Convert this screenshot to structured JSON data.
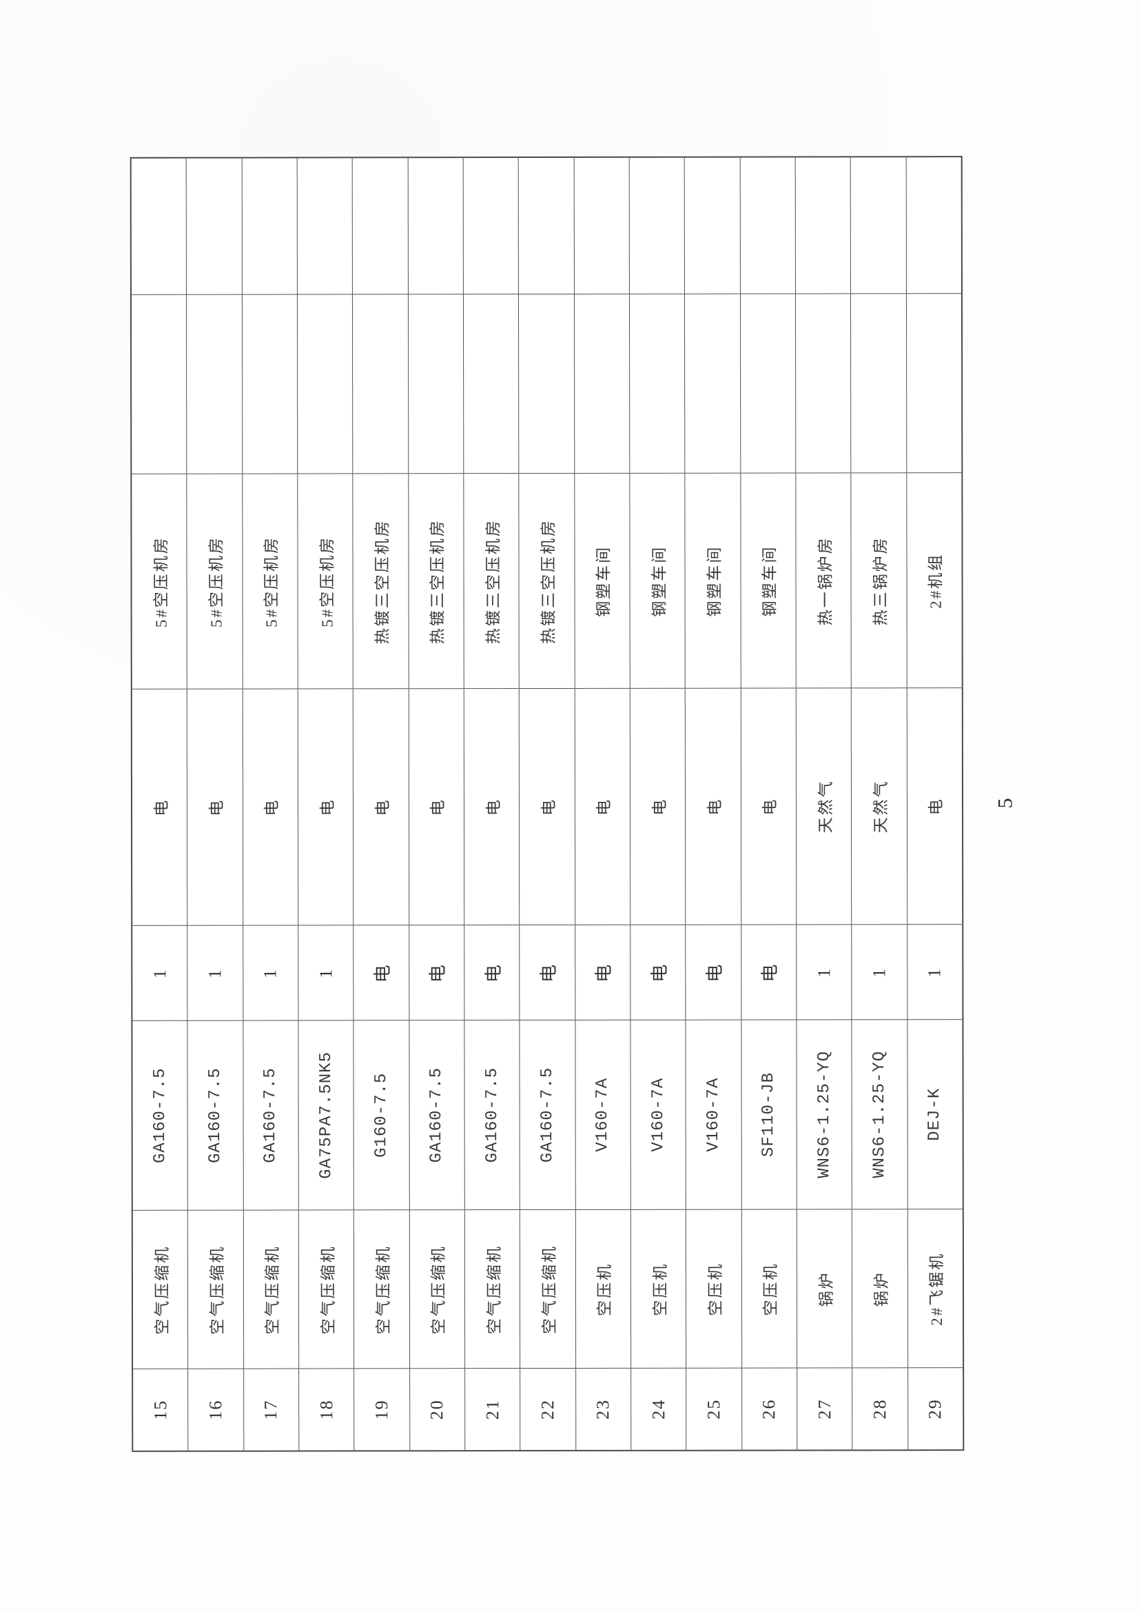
{
  "page": {
    "number": "5"
  },
  "table": {
    "rows": [
      {
        "no": "15",
        "name": "空气压缩机",
        "model": "GA160-7.5",
        "qty": "1",
        "energy": "电",
        "location": "5#空压机房",
        "blank_mid": "",
        "blank_tall": ""
      },
      {
        "no": "16",
        "name": "空气压缩机",
        "model": "GA160-7.5",
        "qty": "1",
        "energy": "电",
        "location": "5#空压机房",
        "blank_mid": "",
        "blank_tall": ""
      },
      {
        "no": "17",
        "name": "空气压缩机",
        "model": "GA160-7.5",
        "qty": "1",
        "energy": "电",
        "location": "5#空压机房",
        "blank_mid": "",
        "blank_tall": ""
      },
      {
        "no": "18",
        "name": "空气压缩机",
        "model": "GA75PA7.5NK5",
        "qty": "1",
        "energy": "电",
        "location": "5#空压机房",
        "blank_mid": "",
        "blank_tall": ""
      },
      {
        "no": "19",
        "name": "空气压缩机",
        "model": "G160-7.5",
        "qty": "电",
        "energy": "电",
        "location": "热镀三空压机房",
        "blank_mid": "",
        "blank_tall": ""
      },
      {
        "no": "20",
        "name": "空气压缩机",
        "model": "GA160-7.5",
        "qty": "电",
        "energy": "电",
        "location": "热镀三空压机房",
        "blank_mid": "",
        "blank_tall": ""
      },
      {
        "no": "21",
        "name": "空气压缩机",
        "model": "GA160-7.5",
        "qty": "电",
        "energy": "电",
        "location": "热镀三空压机房",
        "blank_mid": "",
        "blank_tall": ""
      },
      {
        "no": "22",
        "name": "空气压缩机",
        "model": "GA160-7.5",
        "qty": "电",
        "energy": "电",
        "location": "热镀三空压机房",
        "blank_mid": "",
        "blank_tall": ""
      },
      {
        "no": "23",
        "name": "空压机",
        "model": "V160-7A",
        "qty": "电",
        "energy": "电",
        "location": "钢塑车间",
        "blank_mid": "",
        "blank_tall": ""
      },
      {
        "no": "24",
        "name": "空压机",
        "model": "V160-7A",
        "qty": "电",
        "energy": "电",
        "location": "钢塑车间",
        "blank_mid": "",
        "blank_tall": ""
      },
      {
        "no": "25",
        "name": "空压机",
        "model": "V160-7A",
        "qty": "电",
        "energy": "电",
        "location": "钢塑车间",
        "blank_mid": "",
        "blank_tall": ""
      },
      {
        "no": "26",
        "name": "空压机",
        "model": "SF110-JB",
        "qty": "电",
        "energy": "电",
        "location": "钢塑车间",
        "blank_mid": "",
        "blank_tall": ""
      },
      {
        "no": "27",
        "name": "锅炉",
        "model": "WNS6-1.25-YQ",
        "qty": "1",
        "energy": "天然气",
        "location": "热一锅炉房",
        "blank_mid": "",
        "blank_tall": ""
      },
      {
        "no": "28",
        "name": "锅炉",
        "model": "WNS6-1.25-YQ",
        "qty": "1",
        "energy": "天然气",
        "location": "热三锅炉房",
        "blank_mid": "",
        "blank_tall": ""
      },
      {
        "no": "29",
        "name": "2#飞锯机",
        "model": "DEJ-K",
        "qty": "1",
        "energy": "电",
        "location": "2#机组",
        "blank_mid": "",
        "blank_tall": ""
      }
    ]
  }
}
